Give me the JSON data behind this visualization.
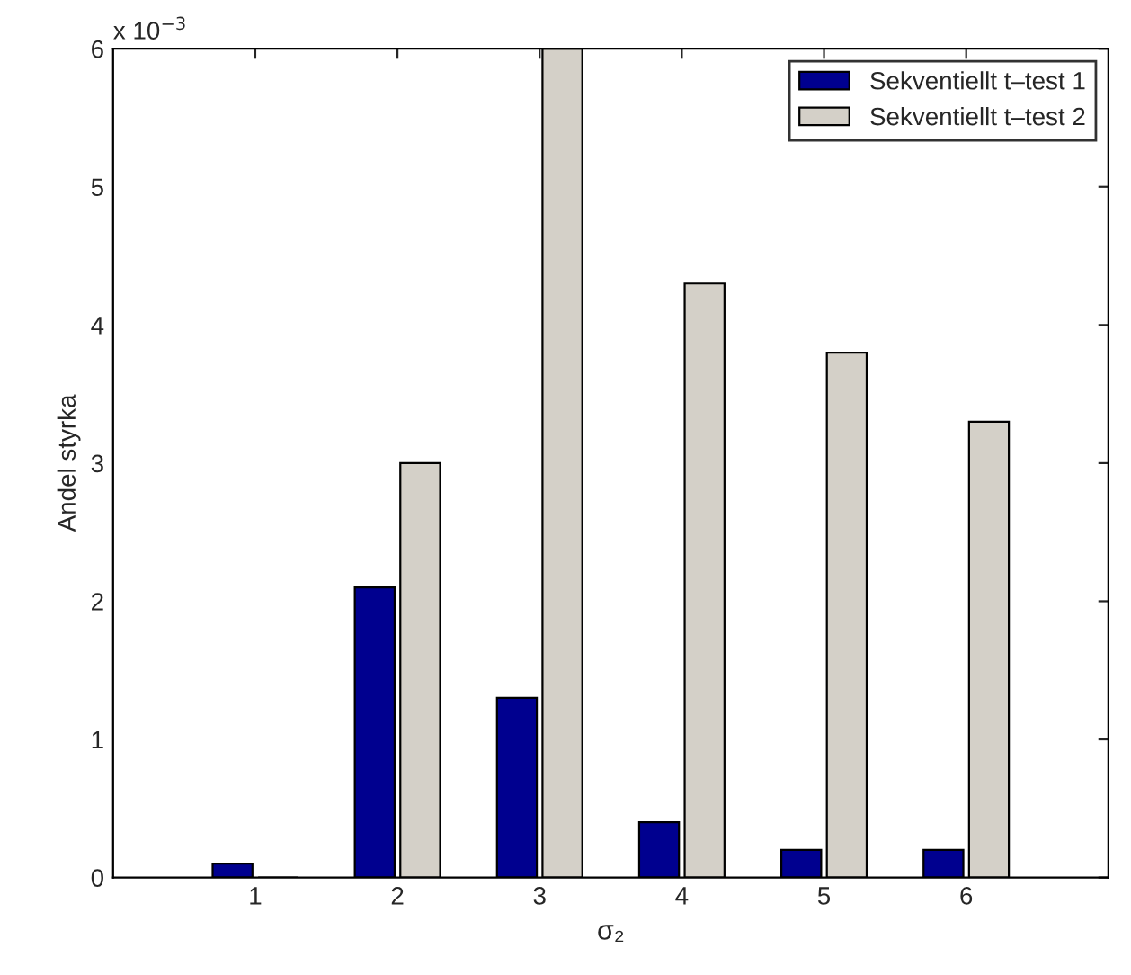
{
  "chart_data": {
    "type": "bar",
    "x": [
      1,
      2,
      3,
      4,
      5,
      6
    ],
    "series": [
      {
        "name": "Sekventiellt t–test 1",
        "color": "#00008f",
        "values": [
          0.1,
          2.1,
          1.3,
          0.4,
          0.2,
          0.2
        ]
      },
      {
        "name": "Sekventiellt t–test 2",
        "color": "#d4d0c8",
        "values": [
          0,
          3,
          6,
          4.3,
          3.8,
          3.3
        ]
      }
    ],
    "xlabel": "σ₂",
    "ylabel": "Andel styrka",
    "xlim": [
      0,
      7
    ],
    "xticks": [
      1,
      2,
      3,
      4,
      5,
      6
    ],
    "ylim": [
      0,
      6
    ],
    "yticks": [
      0,
      1,
      2,
      3,
      4,
      5,
      6
    ],
    "annotations": [
      "x 10$^{−3}$"
    ],
    "legend": "top right",
    "grid": false
  }
}
